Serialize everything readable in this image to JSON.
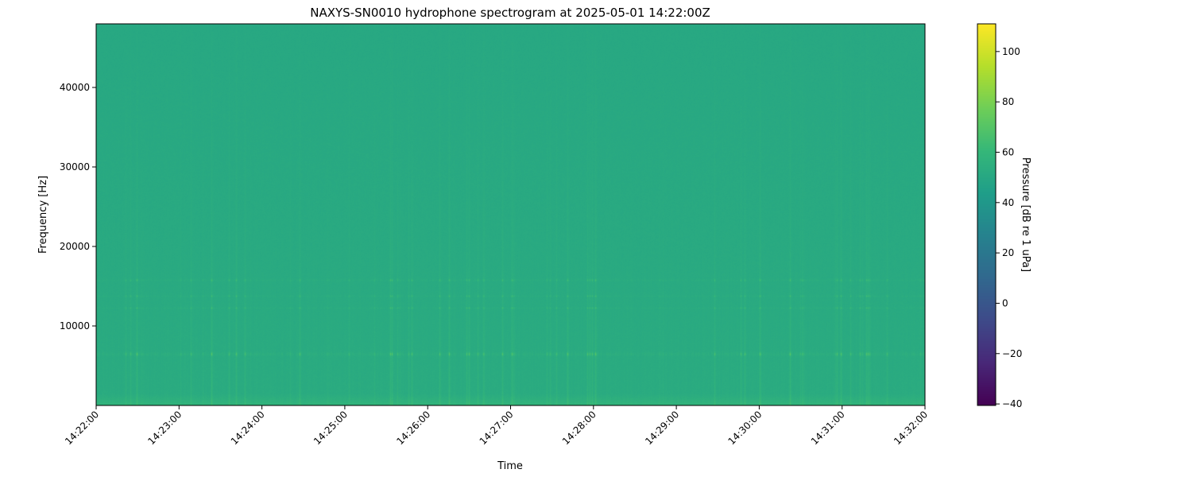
{
  "chart_data": {
    "type": "heatmap",
    "title": "NAXYS-SN0010 hydrophone spectrogram at 2025-05-01 14:22:00Z",
    "xlabel": "Time",
    "ylabel": "Frequency [Hz]",
    "colorbar_label": "Pressure [dB re 1 uPa]",
    "colormap": "viridis",
    "xlim": [
      "14:22:00",
      "14:32:00"
    ],
    "ylim": [
      0,
      48000
    ],
    "clim": [
      -40.6,
      111
    ],
    "x_ticks": [
      "14:22:00",
      "14:23:00",
      "14:24:00",
      "14:25:00",
      "14:26:00",
      "14:27:00",
      "14:28:00",
      "14:29:00",
      "14:30:00",
      "14:31:00",
      "14:32:00"
    ],
    "y_ticks": [
      10000,
      20000,
      30000,
      40000
    ],
    "colorbar_ticks": [
      -40,
      -20,
      0,
      20,
      40,
      60,
      80,
      100
    ],
    "background_level_db": 52,
    "tonal_bands_hz": [
      6500,
      12300,
      13800,
      15800
    ],
    "grid": false
  }
}
